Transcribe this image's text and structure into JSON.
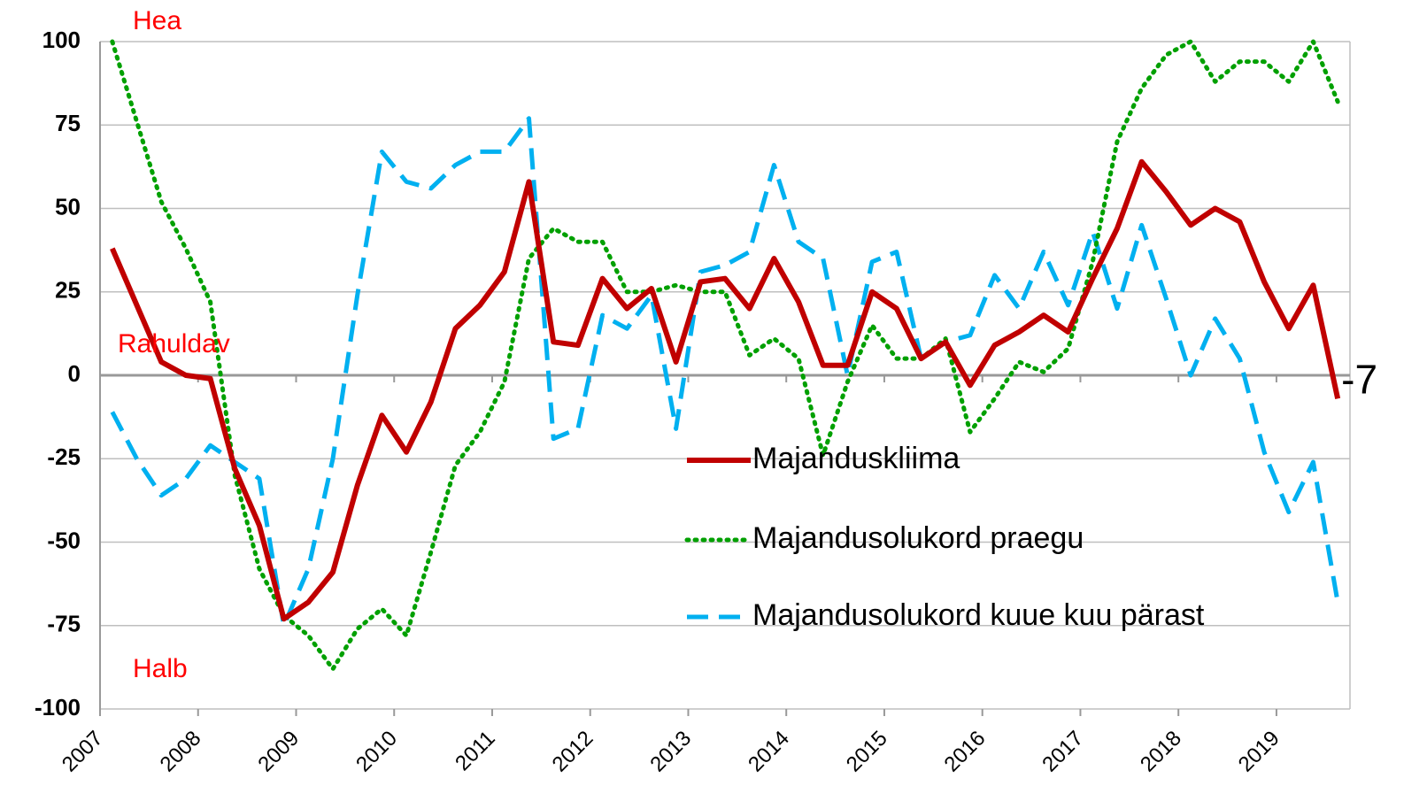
{
  "chart_data": {
    "type": "line",
    "categories": [
      "2007",
      null,
      null,
      null,
      "2008",
      null,
      null,
      null,
      "2009",
      null,
      null,
      null,
      "2010",
      null,
      null,
      null,
      "2011",
      null,
      null,
      null,
      "2012",
      null,
      null,
      null,
      "2013",
      null,
      null,
      null,
      "2014",
      null,
      null,
      null,
      "2015",
      null,
      null,
      null,
      "2016",
      null,
      null,
      null,
      "2017",
      null,
      null,
      null,
      "2018",
      null,
      null,
      null,
      "2019",
      null,
      null
    ],
    "series": [
      {
        "name": "Majanduskliima",
        "color": "#c00000",
        "style": "solid",
        "values": [
          38,
          21,
          4,
          0,
          -1,
          -28,
          -45,
          -73,
          -68,
          -59,
          -33,
          -12,
          -23,
          -8,
          14,
          21,
          31,
          58,
          10,
          9,
          29,
          20,
          26,
          4,
          28,
          29,
          20,
          35,
          22,
          3,
          3,
          25,
          20,
          5,
          10,
          -3,
          9,
          13,
          18,
          13,
          29,
          44,
          64,
          55,
          45,
          50,
          46,
          28,
          14,
          27,
          -7
        ]
      },
      {
        "name": "Majandusolukord praegu",
        "color": "#00a000",
        "style": "dotted",
        "values": [
          100,
          76,
          52,
          38,
          22,
          -30,
          -58,
          -72,
          -78,
          -88,
          -76,
          -70,
          -78,
          -53,
          -27,
          -17,
          -2,
          35,
          44,
          40,
          40,
          25,
          25,
          27,
          25,
          25,
          6,
          11,
          5,
          -24,
          -2,
          15,
          5,
          5,
          11,
          -17,
          -7,
          4,
          1,
          8,
          34,
          70,
          86,
          96,
          100,
          88,
          94,
          94,
          88,
          100,
          82
        ]
      },
      {
        "name": "Majandusolukord kuue kuu pärast",
        "color": "#00b0f0",
        "style": "dashed",
        "values": [
          -11,
          -25,
          -36,
          -31,
          -21,
          -26,
          -31,
          -75,
          -58,
          -25,
          24,
          67,
          58,
          56,
          63,
          67,
          67,
          77,
          -19,
          -16,
          18,
          14,
          24,
          -16,
          31,
          33,
          37,
          63,
          40,
          35,
          0,
          34,
          37,
          5,
          10,
          12,
          30,
          20,
          37,
          21,
          43,
          20,
          45,
          23,
          0,
          17,
          5,
          -23,
          -41,
          -26,
          -68
        ]
      }
    ],
    "annotations": [
      {
        "text": "Hea",
        "color": "#ff0000"
      },
      {
        "text": "Rahuldav",
        "color": "#ff0000"
      },
      {
        "text": "Halb",
        "color": "#ff0000"
      }
    ],
    "ylim": [
      -100,
      100
    ],
    "yticks": [
      -100,
      -75,
      -50,
      -25,
      0,
      25,
      50,
      75,
      100
    ],
    "grid": true
  }
}
